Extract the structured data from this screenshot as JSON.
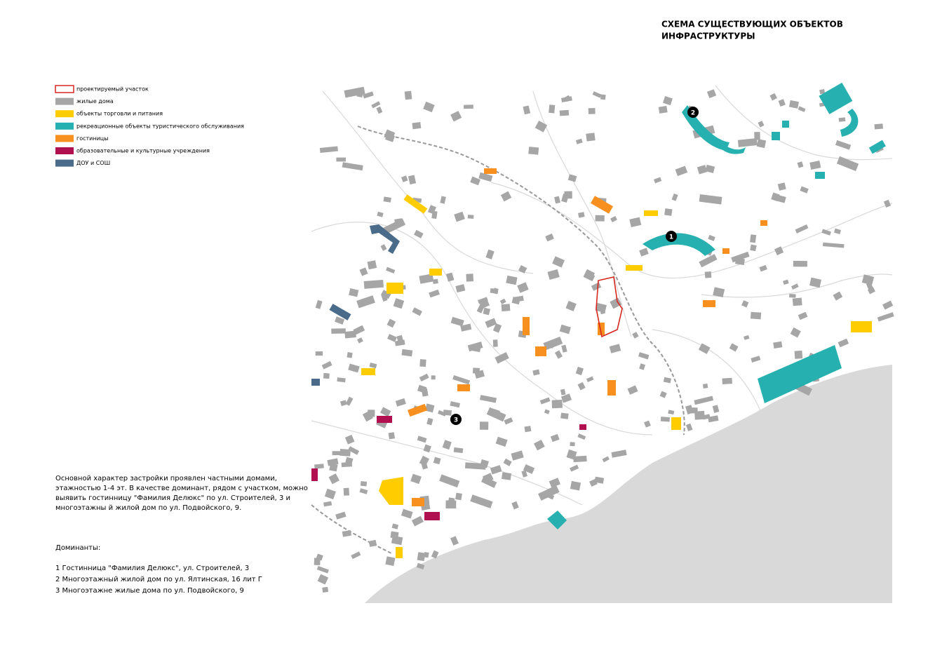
{
  "title_lines": [
    "СХЕМА СУЩЕСТВУЮЩИХ ОБЪЕКТОВ",
    "ИНФРАСТРУКТУРЫ"
  ],
  "legend": [
    {
      "label": "проектируемый участок",
      "color": "#d7261e",
      "outline": true
    },
    {
      "label": "жилые дома",
      "color": "#a6a6a6"
    },
    {
      "label": "объекты торговли и питания",
      "color": "#ffcc00"
    },
    {
      "label": "рекреационные объекты туристического обслуживания",
      "color": "#26b1b0"
    },
    {
      "label": "гостиницы",
      "color": "#f7901e"
    },
    {
      "label": "образовательные и культурные учреждения",
      "color": "#b0104f"
    },
    {
      "label": "ДОУ и СОШ",
      "color": "#4a6b8a"
    }
  ],
  "description_lines": [
    "Основной характер застройки проявлен частными домами,",
    "этажностью 1-4 эт. В качестве доминант, рядом с участком, можно",
    "выявить гостинницу \"Фамилия Делюкс\" по ул. Строителей, 3 и",
    "многоэтажны й жилой дом по ул. Подвойского, 9."
  ],
  "dominants": {
    "heading": "Доминанты:",
    "items": [
      "1  Гостинница \"Фамилия Делюкс\", ул. Строителей, 3",
      "2  Многоэтажный жилой дом по ул. Ялтинская, 16 лит Г",
      "3  Многоэтажне жилые дома по ул. Подвойского, 9"
    ]
  },
  "markers": [
    "1",
    "2",
    "3"
  ]
}
